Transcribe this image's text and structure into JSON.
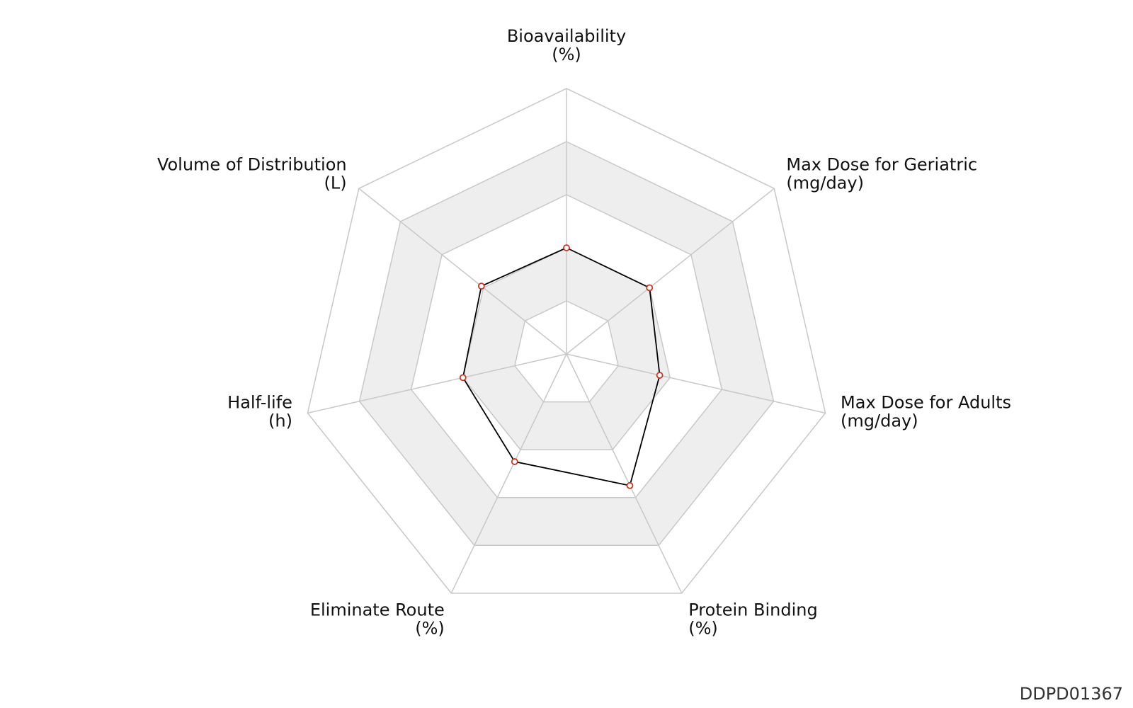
{
  "chart_data": {
    "type": "radar",
    "axes": [
      {
        "label": "Bioavailability",
        "unit": "(%)",
        "value": 0.4
      },
      {
        "label": "Max Dose for Geriatric",
        "unit": "(mg/day)",
        "value": 0.4
      },
      {
        "label": "Max Dose for Adults",
        "unit": "(mg/day)",
        "value": 0.36
      },
      {
        "label": "Protein Binding",
        "unit": "(%)",
        "value": 0.55
      },
      {
        "label": "Eliminate Route",
        "unit": "(%)",
        "value": 0.45
      },
      {
        "label": "Half-life",
        "unit": "(h)",
        "value": 0.4
      },
      {
        "label": "Volume of Distribution",
        "unit": "(L)",
        "value": 0.41
      }
    ],
    "rlim": [
      0,
      1
    ],
    "rings": 5,
    "grid": true,
    "colors": {
      "line": "#000000",
      "marker_edge": "#c0392b",
      "marker_fill": "#ffffff",
      "band_fill": "#eeeeee",
      "grid": "#c8c8c8"
    }
  },
  "footer": {
    "code": "DDPD01367"
  }
}
